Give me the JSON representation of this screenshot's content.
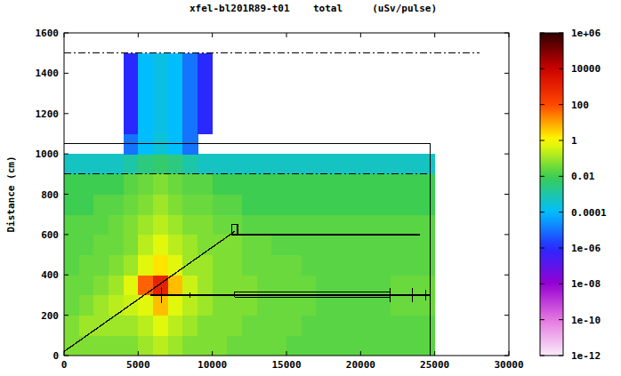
{
  "chart_data": {
    "type": "heatmap",
    "title": "xfel-bl201R89-t01    total     (uSv/pulse)",
    "y_label": "Distance (cm)",
    "xlim": [
      0,
      30000
    ],
    "xticks": [
      0,
      5000,
      10000,
      15000,
      20000,
      25000,
      30000
    ],
    "ylim": [
      0,
      1600
    ],
    "yticks": [
      0,
      200,
      400,
      600,
      800,
      1000,
      1200,
      1400,
      1600
    ],
    "x_edges": [
      0,
      1000,
      2000,
      3000,
      4000,
      5000,
      6000,
      7000,
      8000,
      9000,
      10000,
      11000,
      12000,
      13000,
      14000,
      15000,
      16000,
      17000,
      18000,
      19000,
      20000,
      21000,
      22000,
      23000,
      24000,
      25000
    ],
    "y_edges": [
      0,
      100,
      200,
      300,
      400,
      500,
      600,
      700,
      800,
      900,
      1000,
      1100,
      1200,
      1300,
      1400,
      1500,
      1600
    ],
    "cells": [
      [
        0.05,
        0.05,
        0.05,
        0.05,
        0.05,
        0.1,
        0.2,
        0.1,
        0.05,
        0.05,
        0.05,
        0.03,
        0.03,
        0.03,
        0.03,
        0.02,
        0.02,
        0.02,
        0.02,
        0.02,
        0.02,
        0.02,
        0.02,
        0.02,
        0.02
      ],
      [
        0.05,
        0.1,
        0.1,
        0.1,
        0.1,
        0.2,
        0.5,
        0.2,
        0.1,
        0.05,
        0.05,
        0.05,
        0.03,
        0.03,
        0.03,
        0.03,
        0.02,
        0.02,
        0.02,
        0.02,
        0.02,
        0.02,
        0.02,
        0.02,
        0.02
      ],
      [
        0.03,
        0.05,
        0.1,
        0.2,
        0.3,
        0.5,
        5,
        0.5,
        0.2,
        0.1,
        0.05,
        0.05,
        0.05,
        0.03,
        0.03,
        0.03,
        0.03,
        0.02,
        0.02,
        0.02,
        0.02,
        0.02,
        0.03,
        0.03,
        0.03
      ],
      [
        0.03,
        0.03,
        0.05,
        0.1,
        0.5,
        50,
        1000,
        5,
        0.3,
        0.1,
        0.05,
        0.05,
        0.05,
        0.03,
        0.03,
        0.03,
        0.03,
        0.02,
        0.02,
        0.02,
        0.02,
        0.02,
        0.03,
        0.03,
        0.03
      ],
      [
        0.02,
        0.03,
        0.03,
        0.05,
        0.1,
        0.5,
        2,
        0.5,
        0.1,
        0.1,
        0.05,
        0.05,
        0.03,
        0.03,
        0.03,
        0.03,
        0.02,
        0.02,
        0.02,
        0.02,
        0.02,
        0.02,
        0.02,
        0.02,
        0.02
      ],
      [
        0.02,
        0.02,
        0.03,
        0.03,
        0.05,
        0.2,
        0.5,
        0.2,
        0.1,
        0.05,
        0.05,
        0.05,
        0.03,
        0.03,
        0.02,
        0.02,
        0.02,
        0.02,
        0.02,
        0.02,
        0.02,
        0.02,
        0.02,
        0.02,
        0.02
      ],
      [
        0.02,
        0.02,
        0.02,
        0.03,
        0.05,
        0.1,
        0.2,
        0.1,
        0.05,
        0.05,
        0.03,
        0.03,
        0.02,
        0.02,
        0.02,
        0.02,
        0.02,
        0.02,
        0.02,
        0.02,
        0.02,
        0.02,
        0.02,
        0.02,
        0.02
      ],
      [
        0.01,
        0.01,
        0.02,
        0.02,
        0.03,
        0.05,
        0.1,
        0.05,
        0.03,
        0.03,
        0.02,
        0.02,
        0.01,
        0.01,
        0.01,
        0.01,
        0.01,
        0.01,
        0.01,
        0.01,
        0.01,
        0.01,
        0.01,
        0.01,
        0.01
      ],
      [
        0.01,
        0.01,
        0.01,
        0.01,
        0.02,
        0.03,
        0.05,
        0.03,
        0.02,
        0.02,
        0.01,
        0.01,
        0.01,
        0.01,
        0.01,
        0.01,
        0.01,
        0.01,
        0.01,
        0.01,
        0.01,
        0.01,
        0.01,
        0.01,
        0.01
      ],
      [
        0.0005,
        0.0005,
        0.0005,
        0.0005,
        0.001,
        0.003,
        0.005,
        0.003,
        0.001,
        0.0005,
        0.0005,
        0.0005,
        0.0005,
        0.0005,
        0.0005,
        0.0005,
        0.0005,
        0.0005,
        0.0005,
        0.0005,
        0.0005,
        0.0005,
        0.0005,
        0.0005,
        0.0005
      ],
      [
        null,
        null,
        null,
        null,
        1e-05,
        0.0001,
        0.0003,
        0.0001,
        1e-05,
        null,
        null,
        null,
        null,
        null,
        null,
        null,
        null,
        null,
        null,
        null,
        null,
        null,
        null,
        null,
        null
      ],
      [
        null,
        null,
        null,
        null,
        1e-06,
        0.0001,
        0.0002,
        0.0001,
        1e-05,
        1e-06,
        null,
        null,
        null,
        null,
        null,
        null,
        null,
        null,
        null,
        null,
        null,
        null,
        null,
        null,
        null
      ],
      [
        null,
        null,
        null,
        null,
        1e-06,
        0.0001,
        0.0002,
        0.0001,
        1e-05,
        1e-06,
        null,
        null,
        null,
        null,
        null,
        null,
        null,
        null,
        null,
        null,
        null,
        null,
        null,
        null,
        null
      ],
      [
        null,
        null,
        null,
        null,
        1e-06,
        0.0001,
        0.0002,
        0.0001,
        1e-05,
        1e-06,
        null,
        null,
        null,
        null,
        null,
        null,
        null,
        null,
        null,
        null,
        null,
        null,
        null,
        null,
        null
      ],
      [
        null,
        null,
        null,
        null,
        1e-06,
        0.0001,
        0.0002,
        0.0001,
        1e-05,
        1e-06,
        null,
        null,
        null,
        null,
        null,
        null,
        null,
        null,
        null,
        null,
        null,
        null,
        null,
        null,
        null
      ],
      [
        null,
        null,
        null,
        null,
        null,
        null,
        null,
        null,
        null,
        null,
        null,
        null,
        null,
        null,
        null,
        null,
        null,
        null,
        null,
        null,
        null,
        null,
        null,
        null,
        null
      ]
    ],
    "colorbar_lim": [
      1e-12,
      1000000
    ],
    "colorbar_ticks": [
      {
        "value": 1000000,
        "label": "1e+06"
      },
      10000,
      100,
      1,
      0.01,
      0.0001,
      {
        "value": 1e-06,
        "label": "1e-06"
      },
      {
        "value": 1e-08,
        "label": "1e-08"
      },
      {
        "value": 1e-10,
        "label": "1e-10"
      },
      {
        "value": 1e-12,
        "label": "1e-12"
      }
    ],
    "outlines": [
      {
        "x": [
          0,
          11500
        ],
        "y": [
          20,
          615
        ],
        "line_style": "solid"
      },
      {
        "x": [
          11500,
          24000
        ],
        "y": [
          600,
          600
        ],
        "line_style": "solid"
      },
      {
        "x": [
          5800,
          24700
        ],
        "y": [
          300,
          300
        ],
        "line_style": "solid"
      },
      {
        "x": [
          11500,
          22000,
          22000,
          11500,
          11500
        ],
        "y": [
          290,
          290,
          315,
          315,
          290
        ],
        "line_style": "solid"
      },
      {
        "x": [
          0,
          24700
        ],
        "y": [
          900,
          900
        ],
        "line_style": "dashdot"
      },
      {
        "x": [
          24700,
          24700
        ],
        "y": [
          0,
          1050
        ],
        "line_style": "solid"
      },
      {
        "x": [
          0,
          24700
        ],
        "y": [
          1050,
          1050
        ],
        "line_style": "solid"
      },
      {
        "x": [
          0,
          28000
        ],
        "y": [
          1500,
          1500
        ],
        "line_style": "dashdot"
      },
      {
        "x": [
          6550,
          6550
        ],
        "y": [
          260,
          340
        ],
        "line_style": "solid"
      },
      {
        "x": [
          8500,
          8500
        ],
        "y": [
          285,
          315
        ],
        "line_style": "solid"
      },
      {
        "x": [
          22000,
          22000
        ],
        "y": [
          265,
          335
        ],
        "line_style": "solid"
      },
      {
        "x": [
          23500,
          23500
        ],
        "y": [
          265,
          335
        ],
        "line_style": "solid"
      },
      {
        "x": [
          24400,
          24400
        ],
        "y": [
          275,
          325
        ],
        "line_style": "solid"
      },
      {
        "x": [
          11300,
          11700,
          11700,
          11300,
          11300
        ],
        "y": [
          600,
          600,
          650,
          650,
          600
        ],
        "line_style": "solid"
      }
    ]
  }
}
